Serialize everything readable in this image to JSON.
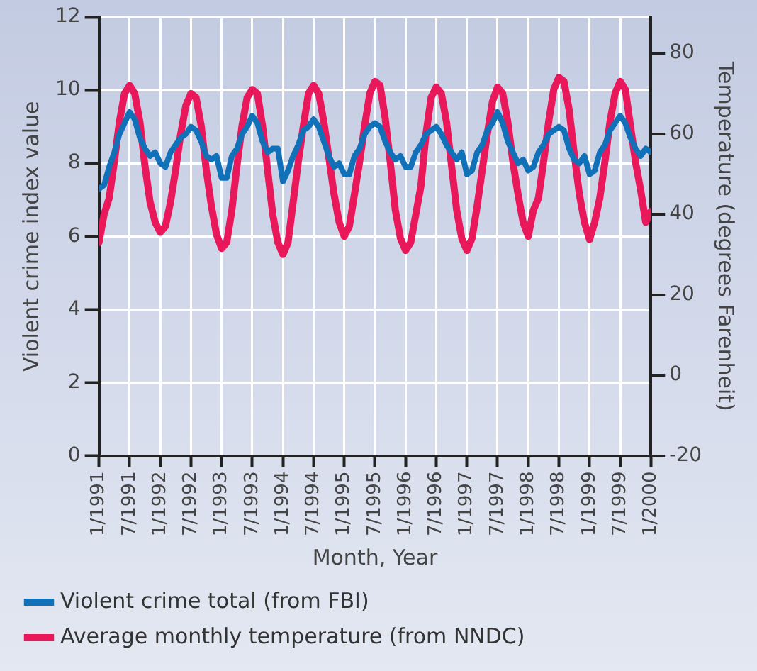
{
  "chart_data": {
    "type": "line",
    "xlabel": "Month, Year",
    "ylabel": "Violent crime index value",
    "y2label": "Temperature (degrees Farenheit)",
    "x": [
      "1991-01",
      "1991-02",
      "1991-03",
      "1991-04",
      "1991-05",
      "1991-06",
      "1991-07",
      "1991-08",
      "1991-09",
      "1991-10",
      "1991-11",
      "1991-12",
      "1992-01",
      "1992-02",
      "1992-03",
      "1992-04",
      "1992-05",
      "1992-06",
      "1992-07",
      "1992-08",
      "1992-09",
      "1992-10",
      "1992-11",
      "1992-12",
      "1993-01",
      "1993-02",
      "1993-03",
      "1993-04",
      "1993-05",
      "1993-06",
      "1993-07",
      "1993-08",
      "1993-09",
      "1993-10",
      "1993-11",
      "1993-12",
      "1994-01",
      "1994-02",
      "1994-03",
      "1994-04",
      "1994-05",
      "1994-06",
      "1994-07",
      "1994-08",
      "1994-09",
      "1994-10",
      "1994-11",
      "1994-12",
      "1995-01",
      "1995-02",
      "1995-03",
      "1995-04",
      "1995-05",
      "1995-06",
      "1995-07",
      "1995-08",
      "1995-09",
      "1995-10",
      "1995-11",
      "1995-12",
      "1996-01",
      "1996-02",
      "1996-03",
      "1996-04",
      "1996-05",
      "1996-06",
      "1996-07",
      "1996-08",
      "1996-09",
      "1996-10",
      "1996-11",
      "1996-12",
      "1997-01",
      "1997-02",
      "1997-03",
      "1997-04",
      "1997-05",
      "1997-06",
      "1997-07",
      "1997-08",
      "1997-09",
      "1997-10",
      "1997-11",
      "1997-12",
      "1998-01",
      "1998-02",
      "1998-03",
      "1998-04",
      "1998-05",
      "1998-06",
      "1998-07",
      "1998-08",
      "1998-09",
      "1998-10",
      "1998-11",
      "1998-12",
      "1999-01",
      "1999-02",
      "1999-03",
      "1999-04",
      "1999-05",
      "1999-06",
      "1999-07",
      "1999-08",
      "1999-09",
      "1999-10",
      "1999-11",
      "1999-12",
      "2000-01"
    ],
    "series": [
      {
        "name": "Violent crime total (from FBI)",
        "color": "#1070b8",
        "values": [
          7.3,
          7.4,
          7.9,
          8.3,
          8.8,
          9.1,
          9.4,
          9.2,
          8.7,
          8.4,
          8.2,
          8.3,
          8.0,
          7.9,
          8.3,
          8.5,
          8.7,
          8.8,
          9.0,
          8.9,
          8.6,
          8.2,
          8.1,
          8.2,
          7.6,
          7.6,
          8.2,
          8.4,
          8.8,
          9.0,
          9.3,
          9.1,
          8.6,
          8.3,
          8.4,
          8.4,
          7.5,
          7.8,
          8.2,
          8.5,
          8.9,
          9.0,
          9.2,
          9.0,
          8.6,
          8.2,
          7.9,
          8.0,
          7.7,
          7.7,
          8.2,
          8.4,
          8.8,
          9.0,
          9.1,
          9.0,
          8.6,
          8.3,
          8.1,
          8.2,
          7.9,
          7.9,
          8.3,
          8.5,
          8.8,
          8.9,
          9.0,
          8.8,
          8.5,
          8.3,
          8.1,
          8.3,
          7.7,
          7.8,
          8.3,
          8.5,
          8.9,
          9.1,
          9.4,
          9.1,
          8.6,
          8.3,
          8.0,
          8.1,
          7.8,
          7.9,
          8.3,
          8.5,
          8.8,
          8.9,
          9.0,
          8.9,
          8.4,
          8.1,
          8.0,
          8.2,
          7.7,
          7.8,
          8.3,
          8.5,
          8.9,
          9.1,
          9.3,
          9.1,
          8.7,
          8.4,
          8.2,
          8.4,
          8.3
        ]
      },
      {
        "name": "Average monthly temperature (from NNDC)",
        "color": "#e8185a",
        "axis": "y2",
        "values": [
          33,
          40,
          44,
          53,
          63,
          70,
          72,
          70,
          63,
          52,
          43,
          38,
          35.5,
          37,
          43,
          51,
          60,
          67,
          70,
          69,
          62,
          51,
          42,
          35,
          31.5,
          33,
          41,
          52,
          62,
          69,
          71,
          70,
          62,
          51,
          40,
          33,
          30,
          33,
          43,
          53,
          62,
          70,
          72,
          70,
          63,
          54,
          45,
          38,
          34.5,
          37,
          45,
          53,
          62,
          70,
          73,
          72,
          64,
          53,
          41,
          34,
          31,
          33,
          40,
          47,
          60,
          69,
          71.6,
          70,
          63,
          52,
          41,
          34,
          31,
          34,
          42,
          51,
          60,
          68,
          71.6,
          70,
          63,
          53,
          45,
          38,
          34.5,
          41,
          44,
          53,
          63,
          71,
          74,
          73,
          66,
          55,
          45,
          38,
          33.7,
          38,
          44,
          53,
          63,
          70,
          73,
          71,
          62,
          53,
          46,
          38,
          40.7
        ]
      }
    ],
    "xlim": [
      "1991-01",
      "2000-01"
    ],
    "xticks": [
      {
        "value": "1991-01",
        "label": "1/1991"
      },
      {
        "value": "1991-07",
        "label": "7/1991"
      },
      {
        "value": "1992-01",
        "label": "1/1992"
      },
      {
        "value": "1992-07",
        "label": "7/1992"
      },
      {
        "value": "1993-01",
        "label": "1/1993"
      },
      {
        "value": "1993-07",
        "label": "7/1993"
      },
      {
        "value": "1994-01",
        "label": "1/1994"
      },
      {
        "value": "1994-07",
        "label": "7/1994"
      },
      {
        "value": "1995-01",
        "label": "1/1995"
      },
      {
        "value": "1995-07",
        "label": "7/1995"
      },
      {
        "value": "1996-01",
        "label": "1/1996"
      },
      {
        "value": "1996-07",
        "label": "7/1996"
      },
      {
        "value": "1997-01",
        "label": "1/1997"
      },
      {
        "value": "1997-07",
        "label": "7/1997"
      },
      {
        "value": "1998-01",
        "label": "1/1998"
      },
      {
        "value": "1998-07",
        "label": "7/1998"
      },
      {
        "value": "1999-01",
        "label": "1/1999"
      },
      {
        "value": "1999-07",
        "label": "7/1999"
      },
      {
        "value": "2000-01",
        "label": "1/2000"
      }
    ],
    "ylim": [
      0,
      12
    ],
    "yticks": [
      0,
      2,
      4,
      6,
      8,
      10,
      12
    ],
    "y2lim": [
      -20,
      89
    ],
    "y2ticks": [
      -20,
      0,
      20,
      40,
      60,
      80
    ],
    "grid": true,
    "legend": "bottom",
    "marker": "none",
    "line_style": "solid"
  }
}
